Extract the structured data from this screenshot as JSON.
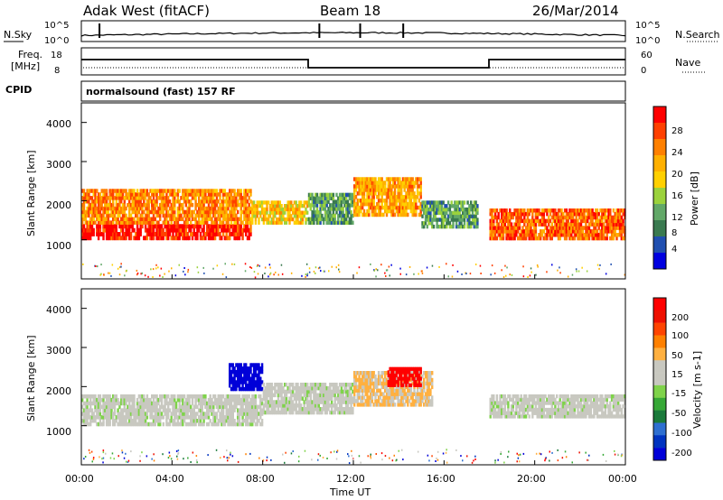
{
  "header": {
    "station": "Adak West (fitACF)",
    "beam": "Beam 18",
    "date": "26/Mar/2014"
  },
  "top_panels": {
    "nsky_label": "N.Sky",
    "nsearch_label": "N.Search",
    "noise_ticks": [
      "10^5",
      "10^0"
    ],
    "noise_ticks_right": [
      "10^5",
      "10^0"
    ],
    "freq_label_1": "Freq.",
    "freq_label_2": "[MHz]",
    "freq_ticks": [
      "18",
      "8"
    ],
    "nave_label": "Nave",
    "nave_ticks": [
      "60",
      "0"
    ],
    "cpid_label": "CPID",
    "cpid_value": "normalsound (fast) 157 RF"
  },
  "colorbars": {
    "power": {
      "label": "Power [dB]",
      "ticks": [
        "28",
        "24",
        "20",
        "16",
        "12",
        "8",
        "4"
      ],
      "colors": [
        "#0000e0",
        "#204fb0",
        "#3a7a50",
        "#62a868",
        "#9bd23c",
        "#ffd000",
        "#ffb000",
        "#ff8000",
        "#ff4000",
        "#ff0000"
      ]
    },
    "velocity": {
      "label": "Velocity [m s-1]",
      "ticks": [
        "200",
        "100",
        "50",
        "15",
        "-15",
        "-50",
        "-100",
        "-200"
      ],
      "colors": [
        "#0000d8",
        "#0033c0",
        "#2e6fd0",
        "#1a7a3a",
        "#36a836",
        "#7fd34a",
        "#c8c8c0",
        "#c8c8c0",
        "#ffb040",
        "#ff8000",
        "#ff4400",
        "#ee1000",
        "#ff0000"
      ]
    }
  },
  "axes": {
    "ylabel": "Slant Range [km]",
    "yticks": [
      "4000",
      "3000",
      "2000",
      "1000"
    ],
    "xticks": [
      "00:00",
      "04:00",
      "08:00",
      "12:00",
      "16:00",
      "20:00",
      "00:00"
    ],
    "xlabel": "Time UT"
  },
  "chart_data": [
    {
      "type": "heatmap",
      "title": "Power [dB]",
      "ylabel": "Slant Range [km]",
      "xlabel": "Time UT",
      "ylim": [
        0,
        4500
      ],
      "x_range_hours": [
        0,
        24
      ],
      "color_scale": [
        0,
        30
      ],
      "bands": [
        {
          "t0": 0.0,
          "t1": 7.5,
          "r0": 1000,
          "r1": 1400,
          "value": 28
        },
        {
          "t0": 0.0,
          "t1": 7.5,
          "r0": 1400,
          "r1": 2300,
          "value": 22
        },
        {
          "t0": 7.5,
          "t1": 10.0,
          "r0": 1400,
          "r1": 2000,
          "value": 18
        },
        {
          "t0": 10.0,
          "t1": 12.0,
          "r0": 1400,
          "r1": 2200,
          "value": 10
        },
        {
          "t0": 12.0,
          "t1": 15.0,
          "r0": 1600,
          "r1": 2600,
          "value": 20
        },
        {
          "t0": 15.0,
          "t1": 17.5,
          "r0": 1300,
          "r1": 2000,
          "value": 10
        },
        {
          "t0": 18.0,
          "t1": 24.0,
          "r0": 1000,
          "r1": 1800,
          "value": 24
        }
      ]
    },
    {
      "type": "heatmap",
      "title": "Velocity [m s-1]",
      "ylabel": "Slant Range [km]",
      "xlabel": "Time UT",
      "ylim": [
        0,
        4500
      ],
      "x_range_hours": [
        0,
        24
      ],
      "color_scale": [
        -200,
        200
      ],
      "bands": [
        {
          "t0": 0.0,
          "t1": 8.0,
          "r0": 1000,
          "r1": 1800,
          "value": 0
        },
        {
          "t0": 6.5,
          "t1": 8.0,
          "r0": 1900,
          "r1": 2600,
          "value": -200
        },
        {
          "t0": 8.0,
          "t1": 12.0,
          "r0": 1300,
          "r1": 2100,
          "value": 0
        },
        {
          "t0": 12.0,
          "t1": 15.5,
          "r0": 1500,
          "r1": 2400,
          "value": 50
        },
        {
          "t0": 13.5,
          "t1": 15.0,
          "r0": 2000,
          "r1": 2500,
          "value": 200
        },
        {
          "t0": 18.0,
          "t1": 24.0,
          "r0": 1200,
          "r1": 1800,
          "value": 0
        }
      ]
    }
  ]
}
